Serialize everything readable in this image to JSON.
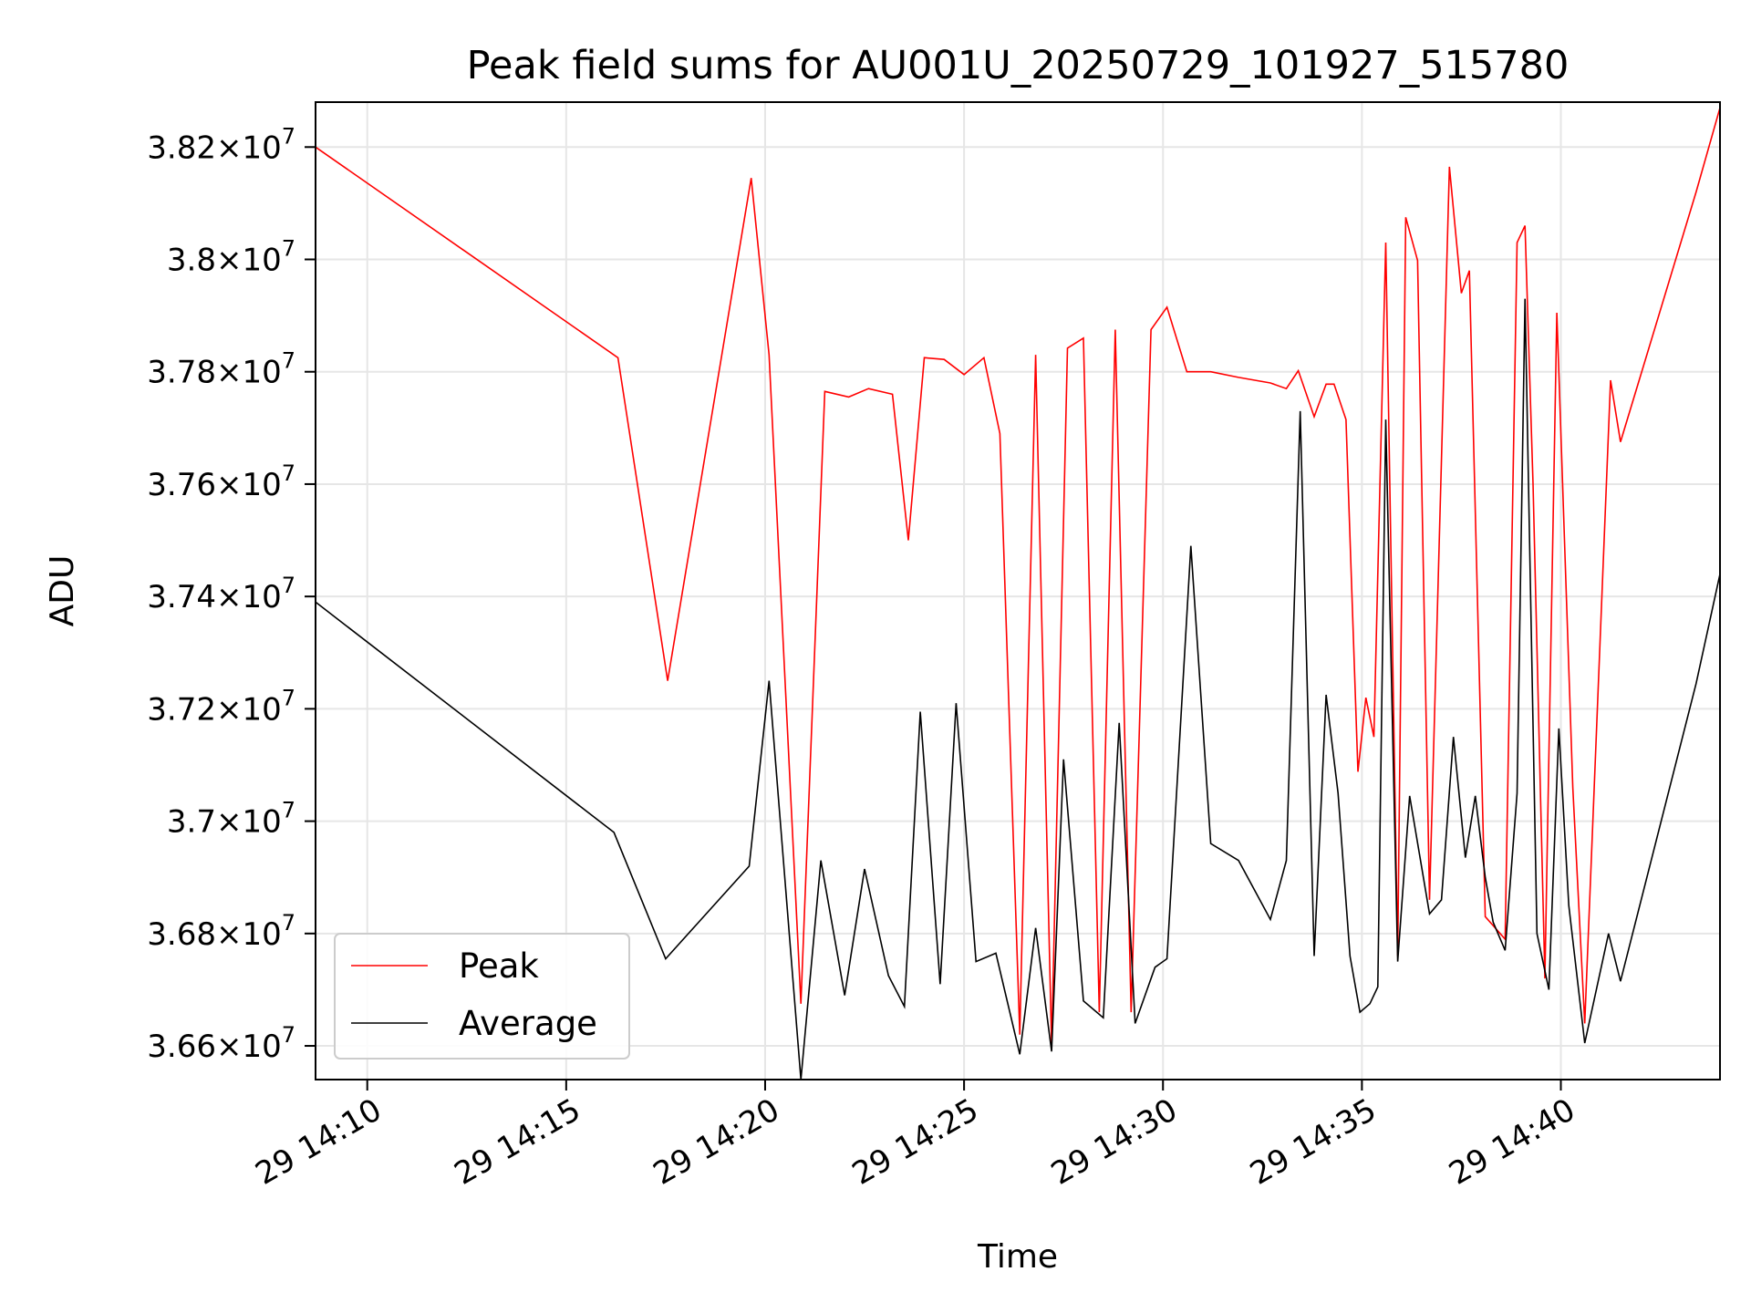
{
  "chart_data": {
    "type": "line",
    "title": "Peak field sums for AU001U_20250729_101927_515780",
    "xlabel": "Time",
    "ylabel": "ADU",
    "x_unit": "minutes past 14:00 on day 29",
    "xlim": [
      8.7,
      44.0
    ],
    "ylim": [
      36540000,
      38280000
    ],
    "x_ticks": [
      {
        "value": 10,
        "label": "29 14:10"
      },
      {
        "value": 15,
        "label": "29 14:15"
      },
      {
        "value": 20,
        "label": "29 14:20"
      },
      {
        "value": 25,
        "label": "29 14:25"
      },
      {
        "value": 30,
        "label": "29 14:30"
      },
      {
        "value": 35,
        "label": "29 14:35"
      },
      {
        "value": 40,
        "label": "29 14:40"
      }
    ],
    "y_ticks": [
      {
        "value": 36600000,
        "mantissa": "3.66",
        "exp": "7"
      },
      {
        "value": 36800000,
        "mantissa": "3.68",
        "exp": "7"
      },
      {
        "value": 37000000,
        "mantissa": "3.7",
        "exp": "7"
      },
      {
        "value": 37200000,
        "mantissa": "3.72",
        "exp": "7"
      },
      {
        "value": 37400000,
        "mantissa": "3.74",
        "exp": "7"
      },
      {
        "value": 37600000,
        "mantissa": "3.76",
        "exp": "7"
      },
      {
        "value": 37800000,
        "mantissa": "3.78",
        "exp": "7"
      },
      {
        "value": 38000000,
        "mantissa": "3.8",
        "exp": "7"
      },
      {
        "value": 38200000,
        "mantissa": "3.82",
        "exp": "7"
      }
    ],
    "grid": true,
    "legend_position": "lower-left",
    "series": [
      {
        "name": "Peak",
        "color": "#ff0000",
        "points": [
          [
            8.7,
            38200000
          ],
          [
            16.3,
            37825000
          ],
          [
            17.55,
            37250000
          ],
          [
            19.65,
            38145000
          ],
          [
            20.1,
            37830000
          ],
          [
            20.9,
            36675000
          ],
          [
            21.5,
            37765000
          ],
          [
            22.1,
            37755000
          ],
          [
            22.6,
            37770000
          ],
          [
            23.2,
            37760000
          ],
          [
            23.6,
            37500000
          ],
          [
            24.0,
            37825000
          ],
          [
            24.5,
            37822000
          ],
          [
            25.0,
            37795000
          ],
          [
            25.5,
            37825000
          ],
          [
            25.9,
            37690000
          ],
          [
            26.4,
            36620000
          ],
          [
            26.8,
            37830000
          ],
          [
            27.2,
            36600000
          ],
          [
            27.6,
            37842000
          ],
          [
            28.0,
            37860000
          ],
          [
            28.4,
            36660000
          ],
          [
            28.8,
            37875000
          ],
          [
            29.2,
            36660000
          ],
          [
            29.7,
            37875000
          ],
          [
            30.1,
            37915000
          ],
          [
            30.6,
            37800000
          ],
          [
            31.2,
            37800000
          ],
          [
            31.9,
            37790000
          ],
          [
            32.7,
            37780000
          ],
          [
            33.1,
            37770000
          ],
          [
            33.4,
            37802000
          ],
          [
            33.8,
            37720000
          ],
          [
            34.1,
            37778000
          ],
          [
            34.3,
            37778000
          ],
          [
            34.6,
            37715000
          ],
          [
            34.9,
            37088000
          ],
          [
            35.1,
            37220000
          ],
          [
            35.3,
            37150000
          ],
          [
            35.6,
            38030000
          ],
          [
            35.9,
            36760000
          ],
          [
            36.1,
            38075000
          ],
          [
            36.4,
            37998000
          ],
          [
            36.7,
            36860000
          ],
          [
            37.2,
            38165000
          ],
          [
            37.5,
            37940000
          ],
          [
            37.7,
            37980000
          ],
          [
            38.1,
            36830000
          ],
          [
            38.6,
            36790000
          ],
          [
            38.9,
            38030000
          ],
          [
            39.1,
            38060000
          ],
          [
            39.3,
            37600000
          ],
          [
            39.6,
            36720000
          ],
          [
            39.9,
            37905000
          ],
          [
            40.3,
            37060000
          ],
          [
            40.6,
            36640000
          ],
          [
            41.25,
            37785000
          ],
          [
            41.5,
            37675000
          ],
          [
            43.4,
            38120000
          ],
          [
            44.0,
            38270000
          ]
        ]
      },
      {
        "name": "Average",
        "color": "#000000",
        "points": [
          [
            8.7,
            37390000
          ],
          [
            16.2,
            36980000
          ],
          [
            17.5,
            36755000
          ],
          [
            19.6,
            36920000
          ],
          [
            20.1,
            37250000
          ],
          [
            20.9,
            36540000
          ],
          [
            21.4,
            36930000
          ],
          [
            22.0,
            36690000
          ],
          [
            22.5,
            36915000
          ],
          [
            23.1,
            36725000
          ],
          [
            23.5,
            36670000
          ],
          [
            23.9,
            37195000
          ],
          [
            24.4,
            36710000
          ],
          [
            24.8,
            37210000
          ],
          [
            25.3,
            36750000
          ],
          [
            25.8,
            36765000
          ],
          [
            26.4,
            36585000
          ],
          [
            26.8,
            36810000
          ],
          [
            27.2,
            36590000
          ],
          [
            27.5,
            37110000
          ],
          [
            28.0,
            36680000
          ],
          [
            28.5,
            36650000
          ],
          [
            28.9,
            37175000
          ],
          [
            29.3,
            36640000
          ],
          [
            29.8,
            36740000
          ],
          [
            30.1,
            36755000
          ],
          [
            30.7,
            37490000
          ],
          [
            31.2,
            36960000
          ],
          [
            31.9,
            36930000
          ],
          [
            32.7,
            36825000
          ],
          [
            33.1,
            36930000
          ],
          [
            33.45,
            37730000
          ],
          [
            33.8,
            36760000
          ],
          [
            34.1,
            37225000
          ],
          [
            34.4,
            37050000
          ],
          [
            34.7,
            36760000
          ],
          [
            34.95,
            36660000
          ],
          [
            35.2,
            36675000
          ],
          [
            35.4,
            36705000
          ],
          [
            35.6,
            37715000
          ],
          [
            35.9,
            36750000
          ],
          [
            36.2,
            37045000
          ],
          [
            36.7,
            36835000
          ],
          [
            37.0,
            36860000
          ],
          [
            37.3,
            37150000
          ],
          [
            37.6,
            36935000
          ],
          [
            37.85,
            37045000
          ],
          [
            38.1,
            36900000
          ],
          [
            38.3,
            36820000
          ],
          [
            38.6,
            36770000
          ],
          [
            38.9,
            37050000
          ],
          [
            39.1,
            37930000
          ],
          [
            39.4,
            36800000
          ],
          [
            39.7,
            36700000
          ],
          [
            39.95,
            37165000
          ],
          [
            40.2,
            36850000
          ],
          [
            40.6,
            36605000
          ],
          [
            41.2,
            36800000
          ],
          [
            41.5,
            36715000
          ],
          [
            43.4,
            37245000
          ],
          [
            44.0,
            37440000
          ]
        ]
      }
    ]
  }
}
